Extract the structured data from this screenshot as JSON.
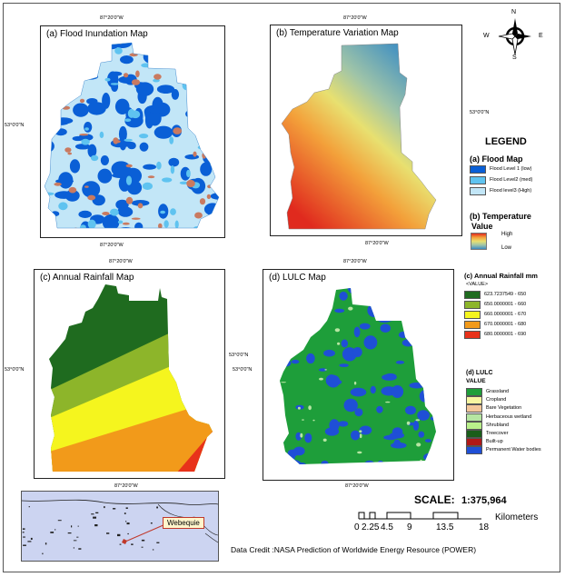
{
  "maps": {
    "flood": {
      "title": "(a) Flood Inundation Map",
      "top_lon": "87°20'0\"W",
      "bottom_lon": "87°20'0\"W",
      "left_lat": "53°0'0\"N"
    },
    "temp": {
      "title": "(b) Temperature Variation Map",
      "top_lon": "87°20'0\"W",
      "bottom_lon": "87°20'0\"W",
      "right_lat": "53°0'0\"N"
    },
    "rain": {
      "title": "(c) Annual Rainfall  Map",
      "top_lon": "87°20'0\"W",
      "bottom_lon": "87°20'0\"W",
      "left_lat": "53°0'0\"N",
      "right_lat": "53°0'0\"N"
    },
    "lulc": {
      "title": "(d) LULC Map",
      "top_lon": "87°20'0\"W",
      "bottom_lon": "87°20'0\"W",
      "left_lat": "53°0'0\"N"
    }
  },
  "north_arrow": {
    "n": "N",
    "s": "S",
    "e": "E",
    "w": "W"
  },
  "legend": {
    "title": "LEGEND",
    "flood": {
      "heading": "(a) Flood Map",
      "items": [
        {
          "label": "Flood Level 1 (low)",
          "color": "#0a5fd6"
        },
        {
          "label": "Flood Level2 (med)",
          "color": "#5fc3f0"
        },
        {
          "label": "Flood level3 (High)",
          "color": "#c2e6f7"
        }
      ]
    },
    "temperature": {
      "heading": "(b) Temperature",
      "subheading": "Value",
      "high": "High",
      "low": "Low"
    },
    "rainfall": {
      "heading": "(c) Annual Rainfall mm",
      "subheading": "<VALUE>",
      "items": [
        {
          "label": "623.7237549 - 650",
          "color": "#1f6b1f"
        },
        {
          "label": "650.0000001 - 660",
          "color": "#8db52a"
        },
        {
          "label": "660.0000001 - 670",
          "color": "#f5f51e"
        },
        {
          "label": "670.0000001 - 680",
          "color": "#f29a1a"
        },
        {
          "label": "680.0000001 - 690",
          "color": "#e8321a"
        }
      ]
    },
    "lulc": {
      "heading": "(d) LULC",
      "subheading": "VALUE",
      "items": [
        {
          "label": "Grassland",
          "color": "#1e9e3a"
        },
        {
          "label": "Cropland",
          "color": "#f6f5a0"
        },
        {
          "label": "Bare Vegetation",
          "color": "#f3c79a"
        },
        {
          "label": "Herbaceous wetland",
          "color": "#b6e6a2"
        },
        {
          "label": "Shrubland",
          "color": "#b9f08a"
        },
        {
          "label": "Treecover",
          "color": "#1a5e1a"
        },
        {
          "label": "Built-up",
          "color": "#b01818"
        },
        {
          "label": "Permanent Water bodies",
          "color": "#1f4fd6"
        }
      ]
    }
  },
  "inset": {
    "label": "Webequie"
  },
  "scale": {
    "label": "SCALE:",
    "ratio": "1:375,964",
    "units": "Kilometers",
    "ticks": [
      "0",
      "2.25",
      "4.5",
      "9",
      "13.5",
      "18"
    ]
  },
  "credit": "Data Credit :NASA Prediction of Worldwide Energy Resource (POWER)"
}
